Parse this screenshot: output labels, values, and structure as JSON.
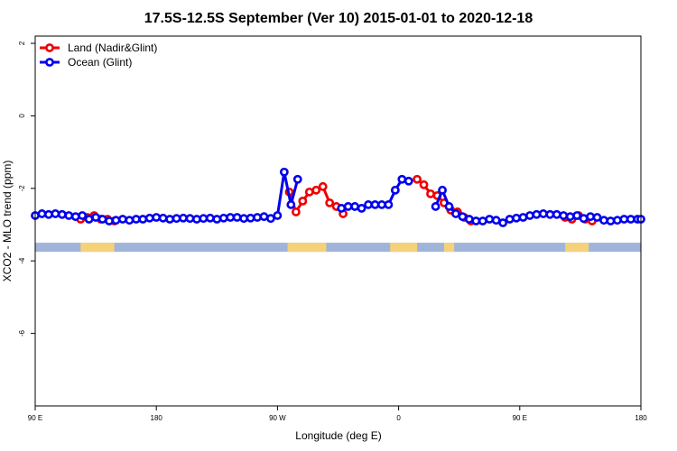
{
  "chart_data": {
    "type": "line",
    "title": "17.5S-12.5S September (Ver 10)   2015-01-01 to 2020-12-18",
    "xlabel": "Longitude (deg E)",
    "ylabel": "XCO2 - MLO trend (ppm)",
    "xlim": [
      90,
      450
    ],
    "ylim": [
      -8,
      2.2
    ],
    "x_ticks": [
      {
        "value": 90,
        "label": "90 E"
      },
      {
        "value": 162,
        "label": "180"
      },
      {
        "value": 234,
        "label": "90 W"
      },
      {
        "value": 306,
        "label": "0"
      },
      {
        "value": 378,
        "label": "90 E"
      },
      {
        "value": 450,
        "label": "180"
      }
    ],
    "y_ticks": [
      {
        "value": 2,
        "label": "2"
      },
      {
        "value": 0,
        "label": "0"
      },
      {
        "value": -2,
        "label": "-2"
      },
      {
        "value": -4,
        "label": "-4"
      },
      {
        "value": -6,
        "label": "-6"
      }
    ],
    "legend_position": "top-left",
    "grid": false,
    "series": [
      {
        "name": "Land (Nadir&Glint)",
        "color": "#ee0000",
        "points": [
          [
            117,
            -2.85
          ],
          [
            121,
            -2.8
          ],
          [
            125,
            -2.75
          ],
          [
            129,
            -2.85
          ],
          [
            133,
            -2.85
          ],
          [
            137,
            -2.9
          ],
          [
            241,
            -2.1
          ],
          [
            245,
            -2.65
          ],
          [
            249,
            -2.35
          ],
          [
            253,
            -2.1
          ],
          [
            257,
            -2.05
          ],
          [
            261,
            -1.95
          ],
          [
            265,
            -2.4
          ],
          [
            269,
            -2.5
          ],
          [
            273,
            -2.7
          ],
          [
            317,
            -1.75
          ],
          [
            321,
            -1.9
          ],
          [
            325,
            -2.15
          ],
          [
            329,
            -2.2
          ],
          [
            333,
            -2.4
          ],
          [
            337,
            -2.6
          ],
          [
            341,
            -2.65
          ],
          [
            345,
            -2.8
          ],
          [
            349,
            -2.9
          ],
          [
            405,
            -2.8
          ],
          [
            409,
            -2.85
          ],
          [
            413,
            -2.75
          ],
          [
            417,
            -2.85
          ],
          [
            421,
            -2.9
          ]
        ]
      },
      {
        "name": "Ocean (Glint)",
        "color": "#0000ee",
        "points": [
          [
            90,
            -2.75
          ],
          [
            94,
            -2.7
          ],
          [
            98,
            -2.72
          ],
          [
            102,
            -2.7
          ],
          [
            106,
            -2.72
          ],
          [
            110,
            -2.75
          ],
          [
            114,
            -2.78
          ],
          [
            118,
            -2.75
          ],
          [
            122,
            -2.85
          ],
          [
            126,
            -2.8
          ],
          [
            130,
            -2.85
          ],
          [
            134,
            -2.9
          ],
          [
            138,
            -2.88
          ],
          [
            142,
            -2.85
          ],
          [
            146,
            -2.88
          ],
          [
            150,
            -2.85
          ],
          [
            154,
            -2.85
          ],
          [
            158,
            -2.82
          ],
          [
            162,
            -2.8
          ],
          [
            166,
            -2.82
          ],
          [
            170,
            -2.85
          ],
          [
            174,
            -2.83
          ],
          [
            178,
            -2.82
          ],
          [
            182,
            -2.83
          ],
          [
            186,
            -2.85
          ],
          [
            190,
            -2.83
          ],
          [
            194,
            -2.82
          ],
          [
            198,
            -2.85
          ],
          [
            202,
            -2.82
          ],
          [
            206,
            -2.8
          ],
          [
            210,
            -2.8
          ],
          [
            214,
            -2.83
          ],
          [
            218,
            -2.82
          ],
          [
            222,
            -2.8
          ],
          [
            226,
            -2.78
          ],
          [
            230,
            -2.83
          ],
          [
            234,
            -2.75
          ],
          [
            238,
            -1.55
          ],
          [
            242,
            -2.45
          ],
          [
            246,
            -1.75
          ],
          [
            272,
            -2.55
          ],
          [
            276,
            -2.5
          ],
          [
            280,
            -2.5
          ],
          [
            284,
            -2.55
          ],
          [
            288,
            -2.45
          ],
          [
            292,
            -2.45
          ],
          [
            296,
            -2.45
          ],
          [
            300,
            -2.45
          ],
          [
            304,
            -2.05
          ],
          [
            308,
            -1.75
          ],
          [
            312,
            -1.8
          ],
          [
            328,
            -2.5
          ],
          [
            332,
            -2.05
          ],
          [
            336,
            -2.5
          ],
          [
            340,
            -2.7
          ],
          [
            344,
            -2.78
          ],
          [
            348,
            -2.85
          ],
          [
            352,
            -2.9
          ],
          [
            356,
            -2.9
          ],
          [
            360,
            -2.85
          ],
          [
            364,
            -2.88
          ],
          [
            368,
            -2.95
          ],
          [
            372,
            -2.85
          ],
          [
            376,
            -2.82
          ],
          [
            380,
            -2.8
          ],
          [
            384,
            -2.75
          ],
          [
            388,
            -2.72
          ],
          [
            392,
            -2.7
          ],
          [
            396,
            -2.72
          ],
          [
            400,
            -2.72
          ],
          [
            404,
            -2.75
          ],
          [
            408,
            -2.78
          ],
          [
            412,
            -2.75
          ],
          [
            416,
            -2.83
          ],
          [
            420,
            -2.78
          ],
          [
            424,
            -2.8
          ],
          [
            428,
            -2.88
          ],
          [
            432,
            -2.9
          ],
          [
            436,
            -2.88
          ],
          [
            440,
            -2.85
          ],
          [
            444,
            -2.85
          ],
          [
            448,
            -2.85
          ],
          [
            450,
            -2.85
          ]
        ]
      }
    ],
    "land_ocean_strip": {
      "y_range": [
        -3.75,
        -3.5
      ],
      "ocean_color": "#9fb4d8",
      "land_color": "#f5d27a",
      "land_segments": [
        [
          117,
          137
        ],
        [
          240,
          263
        ],
        [
          301,
          317
        ],
        [
          333,
          339
        ],
        [
          405,
          419
        ]
      ]
    }
  }
}
